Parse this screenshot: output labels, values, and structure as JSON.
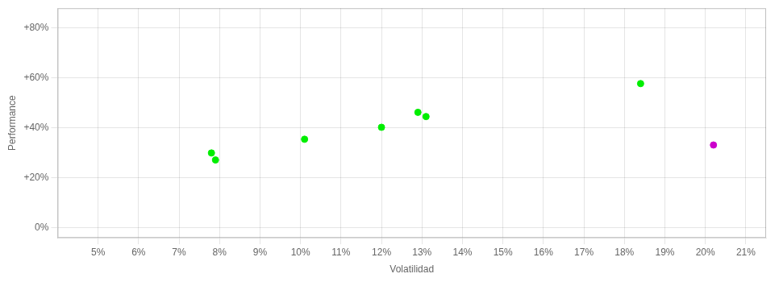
{
  "chart_data": {
    "type": "scatter",
    "xlabel": "Volatilidad",
    "ylabel": "Performance",
    "xlim": [
      0.04,
      0.215
    ],
    "ylim": [
      -0.04,
      0.88
    ],
    "xticks": [
      {
        "value": 0.05,
        "label": "5%"
      },
      {
        "value": 0.06,
        "label": "6%"
      },
      {
        "value": 0.07,
        "label": "7%"
      },
      {
        "value": 0.08,
        "label": "8%"
      },
      {
        "value": 0.09,
        "label": "9%"
      },
      {
        "value": 0.1,
        "label": "10%"
      },
      {
        "value": 0.11,
        "label": "11%"
      },
      {
        "value": 0.12,
        "label": "12%"
      },
      {
        "value": 0.13,
        "label": "13%"
      },
      {
        "value": 0.14,
        "label": "14%"
      },
      {
        "value": 0.15,
        "label": "15%"
      },
      {
        "value": 0.16,
        "label": "16%"
      },
      {
        "value": 0.17,
        "label": "17%"
      },
      {
        "value": 0.18,
        "label": "18%"
      },
      {
        "value": 0.19,
        "label": "19%"
      },
      {
        "value": 0.2,
        "label": "20%"
      },
      {
        "value": 0.21,
        "label": "21%"
      }
    ],
    "yticks": [
      {
        "value": 0.0,
        "label": "0%"
      },
      {
        "value": 0.2,
        "label": "+20%"
      },
      {
        "value": 0.4,
        "label": "+40%"
      },
      {
        "value": 0.6,
        "label": "+60%"
      },
      {
        "value": 0.8,
        "label": "+80%"
      }
    ],
    "grid": true,
    "marker": "circle",
    "series": [
      {
        "color": "#00ee00",
        "x": [
          0.078,
          0.079,
          0.101,
          0.12,
          0.129,
          0.131,
          0.184
        ],
        "values": [
          0.3,
          0.272,
          0.355,
          0.403,
          0.463,
          0.446,
          0.578
        ]
      },
      {
        "color": "#cc00cc",
        "x": [
          0.202
        ],
        "values": [
          0.332
        ]
      }
    ]
  }
}
